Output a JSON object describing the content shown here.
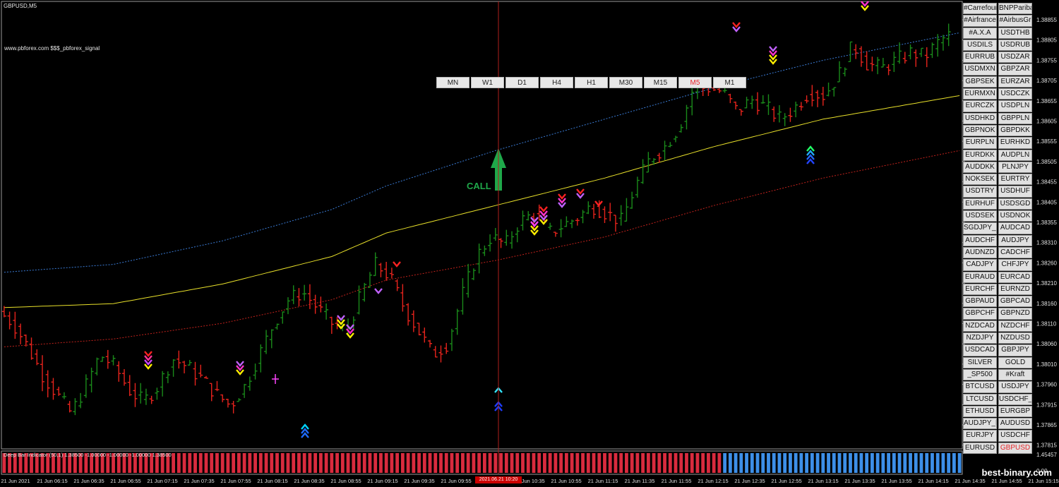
{
  "chart_title": "GBPUSD,M5",
  "watermark": "www.pbforex.com $$$_pbforex_signal",
  "call_label": "CALL",
  "brand": "best-binary.com",
  "indicator_label": "Deep Bar Indicator (50,1) 1.38500 -1.00000 -1.00000 -1.00000 1.38500",
  "indicator_axis": [
    "1.45457",
    "0.00"
  ],
  "cursor_date": "2021.06.21 10:20",
  "colors": {
    "background": "#000000",
    "bull": "#1a8a1a",
    "bear": "#e6231c",
    "ma": "#e8e02a",
    "upper_band": "#3a7bd5",
    "lower_band": "#c2221c",
    "cursor": "#b0201c",
    "hist_red": "#d92b3e",
    "hist_blue": "#3d8fe8",
    "call_arrow": "#1fa84a"
  },
  "timeframes": [
    {
      "label": "MN",
      "active": false
    },
    {
      "label": "W1",
      "active": false
    },
    {
      "label": "D1",
      "active": false
    },
    {
      "label": "H4",
      "active": false
    },
    {
      "label": "H1",
      "active": false
    },
    {
      "label": "M30",
      "active": false
    },
    {
      "label": "M15",
      "active": false
    },
    {
      "label": "M5",
      "active": true
    },
    {
      "label": "M1",
      "active": false
    }
  ],
  "symbols": [
    [
      "#Carrefour",
      "BNPPariba"
    ],
    [
      "#Airfrance",
      "#AirbusGr"
    ],
    [
      "#A.X.A",
      "USDTHB"
    ],
    [
      "USDILS",
      "USDRUB"
    ],
    [
      "EURRUB",
      "USDZAR"
    ],
    [
      "USDMXN",
      "GBPZAR"
    ],
    [
      "GBPSEK",
      "EURZAR"
    ],
    [
      "EURMXN",
      "USDCZK"
    ],
    [
      "EURCZK",
      "USDPLN"
    ],
    [
      "USDHKD",
      "GBPPLN"
    ],
    [
      "GBPNOK",
      "GBPDKK"
    ],
    [
      "EURPLN",
      "EURHKD"
    ],
    [
      "EURDKK",
      "AUDPLN"
    ],
    [
      "AUDDKK",
      "PLNJPY"
    ],
    [
      "NOKSEK",
      "EURTRY"
    ],
    [
      "USDTRY",
      "USDHUF"
    ],
    [
      "EURHUF",
      "USDSGD"
    ],
    [
      "USDSEK",
      "USDNOK"
    ],
    [
      "SGDJPY_ST",
      "AUDCAD"
    ],
    [
      "AUDCHF",
      "AUDJPY"
    ],
    [
      "AUDNZD",
      "CADCHF"
    ],
    [
      "CADJPY",
      "CHFJPY"
    ],
    [
      "EURAUD",
      "EURCAD"
    ],
    [
      "EURCHF",
      "EURNZD"
    ],
    [
      "GBPAUD",
      "GBPCAD"
    ],
    [
      "GBPCHF",
      "GBPNZD"
    ],
    [
      "NZDCAD",
      "NZDCHF"
    ],
    [
      "NZDJPY",
      "NZDUSD"
    ],
    [
      "USDCAD",
      "GBPJPY"
    ],
    [
      "SILVER",
      "GOLD"
    ],
    [
      "_SP500",
      "#Kraft"
    ],
    [
      "BTCUSD",
      "USDJPY"
    ],
    [
      "LTCUSD",
      "USDCHF_FX"
    ],
    [
      "ETHUSD",
      "EURGBP"
    ],
    [
      "AUDJPY_FX",
      "AUDUSD"
    ],
    [
      "EURJPY",
      "USDCHF"
    ],
    [
      "EURUSD",
      "GBPUSD"
    ]
  ],
  "active_symbol": "GBPUSD",
  "chart_data": {
    "type": "candlestick",
    "ylim": [
      1.3776,
      1.389
    ],
    "y_ticks": [
      "1.38855",
      "1.38805",
      "1.38755",
      "1.38705",
      "1.38655",
      "1.38605",
      "1.38555",
      "1.38505",
      "1.38455",
      "1.38405",
      "1.38355",
      "1.38310",
      "1.38260",
      "1.38210",
      "1.38160",
      "1.38110",
      "1.38060",
      "1.38010",
      "1.37960",
      "1.37915",
      "1.37865",
      "1.37815"
    ],
    "x_ticks": [
      "21 Jun 2021",
      "21 Jun 06:15",
      "21 Jun 06:35",
      "21 Jun 06:55",
      "21 Jun 07:15",
      "21 Jun 07:35",
      "21 Jun 07:55",
      "21 Jun 08:15",
      "21 Jun 08:35",
      "21 Jun 08:55",
      "21 Jun 09:15",
      "21 Jun 09:35",
      "21 Jun 09:55",
      "21 Jun 10:15",
      "21 Jun 10:35",
      "21 Jun 10:55",
      "21 Jun 11:15",
      "21 Jun 11:35",
      "21 Jun 11:55",
      "21 Jun 12:15",
      "21 Jun 12:35",
      "21 Jun 12:55",
      "21 Jun 13:15",
      "21 Jun 13:35",
      "21 Jun 13:55",
      "21 Jun 14:15",
      "21 Jun 14:35",
      "21 Jun 14:55",
      "21 Jun 15:15"
    ],
    "ma": [
      [
        0,
        1.3812
      ],
      [
        20,
        1.3813
      ],
      [
        40,
        1.3818
      ],
      [
        60,
        1.3825
      ],
      [
        70,
        1.3831
      ],
      [
        90,
        1.3838
      ],
      [
        110,
        1.3845
      ],
      [
        130,
        1.3853
      ],
      [
        150,
        1.386
      ],
      [
        175,
        1.3866
      ]
    ],
    "upper_band": [
      [
        0,
        1.3821
      ],
      [
        20,
        1.3823
      ],
      [
        40,
        1.3829
      ],
      [
        60,
        1.3837
      ],
      [
        70,
        1.3843
      ],
      [
        90,
        1.3852
      ],
      [
        110,
        1.386
      ],
      [
        130,
        1.3868
      ],
      [
        150,
        1.3875
      ],
      [
        175,
        1.3882
      ]
    ],
    "lower_band": [
      [
        0,
        1.3802
      ],
      [
        20,
        1.3804
      ],
      [
        40,
        1.3808
      ],
      [
        60,
        1.3814
      ],
      [
        70,
        1.3819
      ],
      [
        90,
        1.3824
      ],
      [
        110,
        1.383
      ],
      [
        130,
        1.3838
      ],
      [
        150,
        1.3845
      ],
      [
        175,
        1.3852
      ]
    ],
    "price_path": [
      1.3811,
      1.3808,
      1.3802,
      1.3795,
      1.379,
      1.3785,
      1.3792,
      1.38,
      1.3797,
      1.3791,
      1.3788,
      1.3792,
      1.3799,
      1.3797,
      1.3794,
      1.379,
      1.3787,
      1.3792,
      1.38,
      1.3808,
      1.3814,
      1.3816,
      1.3812,
      1.3808,
      1.3806,
      1.3815,
      1.3823,
      1.382,
      1.3812,
      1.3806,
      1.38,
      1.3803,
      1.3815,
      1.3825,
      1.383,
      1.3828,
      1.3834,
      1.3836,
      1.3831,
      1.3833,
      1.3835,
      1.3838,
      1.3836,
      1.3834,
      1.3843,
      1.385,
      1.3853,
      1.3858,
      1.3868,
      1.3868,
      1.3867,
      1.3862,
      1.3865,
      1.3863,
      1.386,
      1.3863,
      1.3867,
      1.3866,
      1.3871,
      1.3879,
      1.3874,
      1.3873,
      1.3875,
      1.3877,
      1.3876,
      1.388,
      1.3882
    ],
    "cursor_x_index": 70,
    "histogram_switch_index": 50
  }
}
